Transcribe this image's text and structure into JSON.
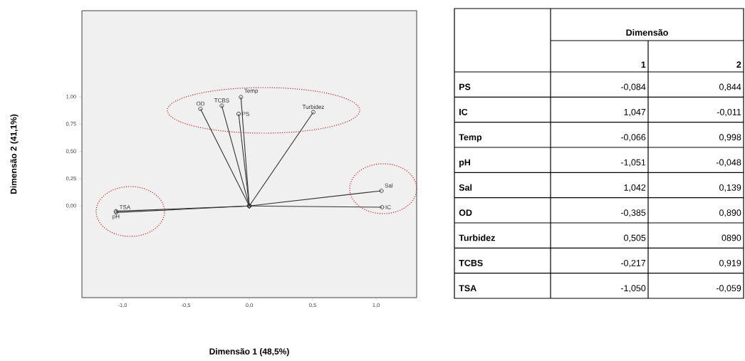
{
  "chart_data": [
    {
      "type": "line",
      "xlabel": "Dimensão 1 (48,5%)",
      "ylabel": "Dimensão 2 (41,1%)",
      "xlim": [
        -1.32,
        1.32
      ],
      "ylim": [
        -0.84,
        1.79
      ],
      "xticks": [
        {
          "value": -1,
          "label": "-1,0"
        },
        {
          "value": -0.5,
          "label": "-0,5"
        },
        {
          "value": 0,
          "label": "0,0"
        },
        {
          "value": 0.5,
          "label": "0,5"
        },
        {
          "value": 1,
          "label": "1,0"
        }
      ],
      "yticks": [
        {
          "value": 0,
          "label": "0,00"
        },
        {
          "value": 0.25,
          "label": "0,25"
        },
        {
          "value": 0.5,
          "label": "0,50"
        },
        {
          "value": 0.75,
          "label": "0,75"
        },
        {
          "value": 1,
          "label": "1,00"
        }
      ],
      "marker": "circle",
      "line_style": "solid",
      "series": [
        {
          "name": "PS",
          "color": "#333333",
          "x": [
            0,
            -0.084
          ],
          "values": [
            0,
            0.844
          ]
        },
        {
          "name": "IC",
          "color": "#333333",
          "x": [
            0,
            1.047
          ],
          "values": [
            0,
            -0.011
          ]
        },
        {
          "name": "Temp",
          "color": "#333333",
          "x": [
            0,
            -0.066
          ],
          "values": [
            0,
            0.998
          ]
        },
        {
          "name": "pH",
          "color": "#333333",
          "x": [
            0,
            -1.051
          ],
          "values": [
            0,
            -0.048
          ]
        },
        {
          "name": "Sal",
          "color": "#333333",
          "x": [
            0,
            1.042
          ],
          "values": [
            0,
            0.139
          ]
        },
        {
          "name": "OD",
          "color": "#333333",
          "x": [
            0,
            -0.385
          ],
          "values": [
            0,
            0.89
          ]
        },
        {
          "name": "Turbidez",
          "color": "#333333",
          "x": [
            0,
            0.505
          ],
          "values": [
            0,
            0.86
          ]
        },
        {
          "name": "TCBS",
          "color": "#333333",
          "x": [
            0,
            -0.217
          ],
          "values": [
            0,
            0.919
          ]
        },
        {
          "name": "TSA",
          "color": "#333333",
          "x": [
            0,
            -1.05
          ],
          "values": [
            0,
            -0.059
          ]
        }
      ]
    },
    {
      "type": "other",
      "title": "Dimensão",
      "categories": [
        "1",
        "2"
      ],
      "y_categories": [
        "PS",
        "IC",
        "Temp",
        "pH",
        "Sal",
        "OD",
        "Turbidez",
        "TCBS",
        "TSA"
      ],
      "cell_labels": [
        [
          "-0,084",
          "0,844"
        ],
        [
          "1,047",
          "-0,011"
        ],
        [
          "-0,066",
          "0,998"
        ],
        [
          "-1,051",
          "-0,048"
        ],
        [
          "1,042",
          "0,139"
        ],
        [
          "-0,385",
          "0,890"
        ],
        [
          "0,505",
          "0890"
        ],
        [
          "-0,217",
          "0,919"
        ],
        [
          "-1,050",
          "-0,059"
        ]
      ]
    }
  ]
}
